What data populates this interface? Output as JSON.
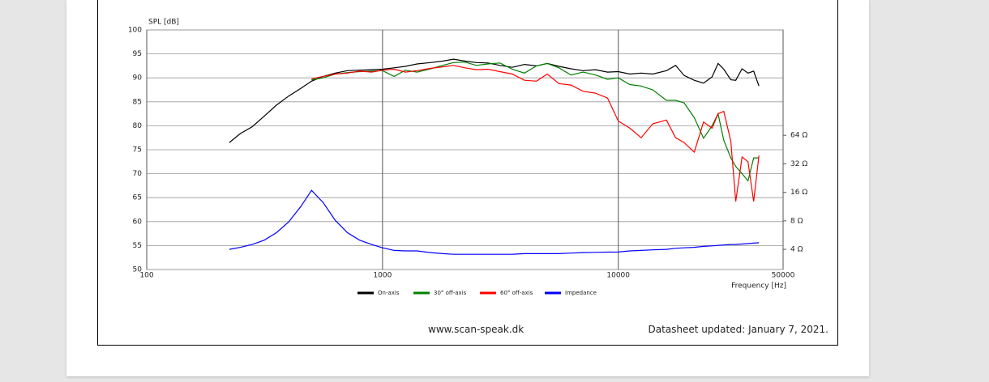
{
  "chart_data": {
    "type": "line",
    "y_label": "SPL [dB]",
    "x_label": "Frequency [Hz]",
    "x": [
      224,
      250,
      280,
      315,
      355,
      400,
      450,
      500,
      560,
      630,
      710,
      800,
      900,
      1000,
      1120,
      1250,
      1400,
      1600,
      1800,
      2000,
      2240,
      2500,
      2800,
      3150,
      3550,
      4000,
      4500,
      5000,
      5600,
      6300,
      7100,
      8000,
      9000,
      10000,
      11200,
      12500,
      14000,
      16000,
      17500,
      19000,
      21000,
      23000,
      25000,
      26500,
      28000,
      30000,
      31500,
      33500,
      35500,
      37500,
      39500
    ],
    "xlog": true,
    "xlim": [
      100,
      50000
    ],
    "xticks": [
      100,
      1000,
      10000,
      50000
    ],
    "ylim": [
      50,
      100
    ],
    "yticks": [
      50,
      55,
      60,
      65,
      70,
      75,
      80,
      85,
      90,
      95,
      100
    ],
    "y2log": true,
    "y2lim": [
      2.45,
      830
    ],
    "y2ticks": [
      {
        "value": 4,
        "label": "4 Ω"
      },
      {
        "value": 8,
        "label": "8 Ω"
      },
      {
        "value": 16,
        "label": "16 Ω"
      },
      {
        "value": 32,
        "label": "32 Ω"
      },
      {
        "value": 64,
        "label": "64 Ω"
      }
    ],
    "grid": true,
    "legend": "bottom",
    "series": [
      {
        "name": "On-axis",
        "color": "#000000",
        "values": [
          76.5,
          78.4,
          79.8,
          82,
          84.3,
          86.2,
          87.8,
          89.3,
          90.3,
          91,
          91.5,
          91.6,
          91.7,
          91.8,
          92.1,
          92.4,
          92.9,
          93.2,
          93.5,
          93.9,
          93.5,
          93.2,
          93.1,
          92.6,
          92.2,
          92.8,
          92.5,
          93,
          92.4,
          91.9,
          91.5,
          91.7,
          91.2,
          91.3,
          90.8,
          91,
          90.8,
          91.5,
          92.6,
          90.5,
          89.5,
          88.9,
          90.2,
          93,
          91.8,
          89.6,
          89.5,
          91.9,
          91,
          91.4,
          88.3
        ]
      },
      {
        "name": "30° off-axis",
        "color": "#008000",
        "values": [
          null,
          null,
          null,
          null,
          null,
          null,
          null,
          89.6,
          90,
          90.8,
          91.1,
          91.3,
          91.4,
          91.5,
          90.3,
          91.6,
          91.2,
          91.9,
          92.6,
          93.2,
          93.3,
          92.6,
          92.9,
          93.1,
          91.8,
          91,
          92.5,
          93,
          92.1,
          90.6,
          91.2,
          90.6,
          89.7,
          90,
          88.6,
          88.3,
          87.5,
          85.3,
          85.3,
          84.8,
          81.7,
          77.4,
          80,
          82.5,
          77,
          73.3,
          71.5,
          70,
          68.5,
          73.3,
          73.3
        ]
      },
      {
        "name": "60° off-axis",
        "color": "#ff0000",
        "values": [
          null,
          null,
          null,
          null,
          null,
          null,
          null,
          89.8,
          90.3,
          90.8,
          91,
          91.4,
          91.2,
          91.6,
          91.8,
          91.2,
          91.5,
          92,
          92.3,
          92.6,
          92.1,
          91.7,
          91.8,
          91.3,
          90.8,
          89.5,
          89.3,
          90.8,
          88.8,
          88.5,
          87.2,
          86.8,
          85.8,
          81,
          79.5,
          77.5,
          80.4,
          81.2,
          77.5,
          76.5,
          74.5,
          80.8,
          79.5,
          82.5,
          83,
          76.8,
          64.2,
          73.5,
          72.5,
          64.2,
          73.8
        ]
      },
      {
        "name": "Impedance",
        "color": "#0000ff",
        "axis": "y2",
        "values": [
          4.0,
          4.2,
          4.5,
          5.0,
          6.0,
          7.8,
          11.3,
          16.8,
          12.5,
          8.1,
          6.0,
          5.0,
          4.5,
          4.15,
          3.9,
          3.85,
          3.85,
          3.7,
          3.6,
          3.55,
          3.55,
          3.55,
          3.55,
          3.55,
          3.55,
          3.6,
          3.6,
          3.6,
          3.6,
          3.65,
          3.7,
          3.72,
          3.74,
          3.75,
          3.85,
          3.9,
          3.95,
          4.0,
          4.1,
          4.15,
          4.2,
          4.3,
          4.35,
          4.4,
          4.45,
          4.5,
          4.5,
          4.55,
          4.6,
          4.65,
          4.7
        ]
      }
    ]
  },
  "footer": {
    "website": "www.scan-speak.dk",
    "updated": "Datasheet updated: January 7, 2021."
  }
}
